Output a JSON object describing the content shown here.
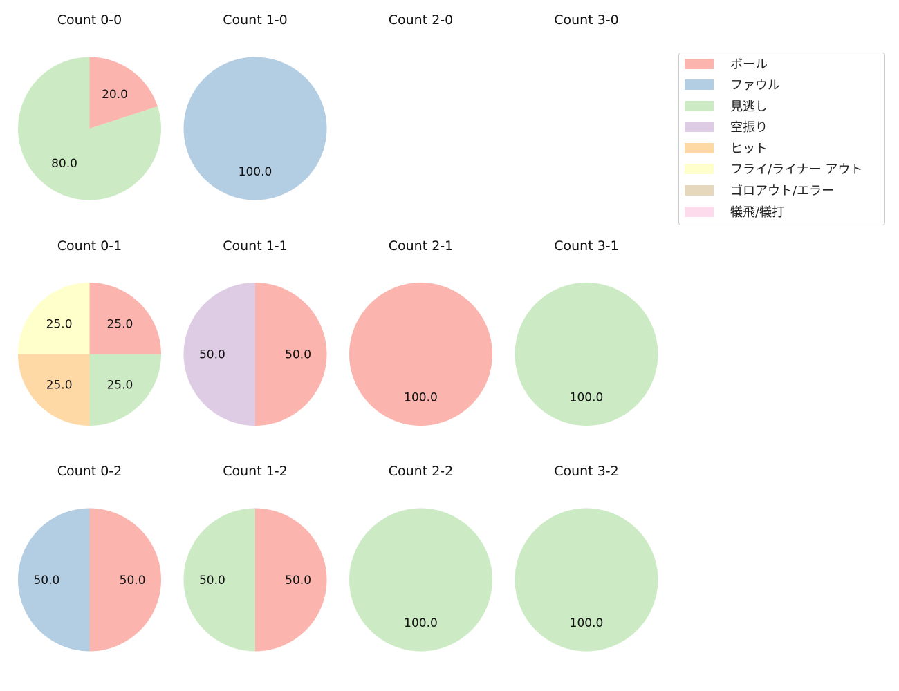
{
  "chart_data": {
    "type": "pie",
    "layout": "3 rows x 4 columns grid of pie charts, legend on right",
    "legend_position": "upper right",
    "categories": [
      "ボール",
      "ファウル",
      "見逃し",
      "空振り",
      "ヒット",
      "フライ/ライナー アウト",
      "ゴロアウト/エラー",
      "犠飛/犠打"
    ],
    "colors": [
      "#fbb4ae",
      "#b3cde3",
      "#ccebc5",
      "#decbe4",
      "#fed9a6",
      "#ffffcc",
      "#e5d8bd",
      "#fddaec"
    ],
    "pies": [
      {
        "title": "Count 0-0",
        "row": 0,
        "col": 0,
        "slices": [
          {
            "category": "ボール",
            "value": 20.0
          },
          {
            "category": "見逃し",
            "value": 80.0
          }
        ]
      },
      {
        "title": "Count 1-0",
        "row": 0,
        "col": 1,
        "slices": [
          {
            "category": "ファウル",
            "value": 100.0
          }
        ]
      },
      {
        "title": "Count 2-0",
        "row": 0,
        "col": 2,
        "slices": []
      },
      {
        "title": "Count 3-0",
        "row": 0,
        "col": 3,
        "slices": []
      },
      {
        "title": "Count 0-1",
        "row": 1,
        "col": 0,
        "slices": [
          {
            "category": "ボール",
            "value": 25.0
          },
          {
            "category": "見逃し",
            "value": 25.0
          },
          {
            "category": "ヒット",
            "value": 25.0
          },
          {
            "category": "フライ/ライナー アウト",
            "value": 25.0
          }
        ]
      },
      {
        "title": "Count 1-1",
        "row": 1,
        "col": 1,
        "slices": [
          {
            "category": "ボール",
            "value": 50.0
          },
          {
            "category": "空振り",
            "value": 50.0
          }
        ]
      },
      {
        "title": "Count 2-1",
        "row": 1,
        "col": 2,
        "slices": [
          {
            "category": "ボール",
            "value": 100.0
          }
        ]
      },
      {
        "title": "Count 3-1",
        "row": 1,
        "col": 3,
        "slices": [
          {
            "category": "見逃し",
            "value": 100.0
          }
        ]
      },
      {
        "title": "Count 0-2",
        "row": 2,
        "col": 0,
        "slices": [
          {
            "category": "ボール",
            "value": 50.0
          },
          {
            "category": "ファウル",
            "value": 50.0
          }
        ]
      },
      {
        "title": "Count 1-2",
        "row": 2,
        "col": 1,
        "slices": [
          {
            "category": "ボール",
            "value": 50.0
          },
          {
            "category": "見逃し",
            "value": 50.0
          }
        ]
      },
      {
        "title": "Count 2-2",
        "row": 2,
        "col": 2,
        "slices": [
          {
            "category": "見逃し",
            "value": 100.0
          }
        ]
      },
      {
        "title": "Count 3-2",
        "row": 2,
        "col": 3,
        "slices": [
          {
            "category": "見逃し",
            "value": 100.0
          }
        ]
      }
    ]
  },
  "legend": {
    "items": [
      {
        "label": "ボール",
        "color": "#fbb4ae"
      },
      {
        "label": "ファウル",
        "color": "#b3cde3"
      },
      {
        "label": "見逃し",
        "color": "#ccebc5"
      },
      {
        "label": "空振り",
        "color": "#decbe4"
      },
      {
        "label": "ヒット",
        "color": "#fed9a6"
      },
      {
        "label": "フライ/ライナー アウト",
        "color": "#ffffcc"
      },
      {
        "label": "ゴロアウト/エラー",
        "color": "#e5d8bd"
      },
      {
        "label": "犠飛/犠打",
        "color": "#fddaec"
      }
    ]
  }
}
